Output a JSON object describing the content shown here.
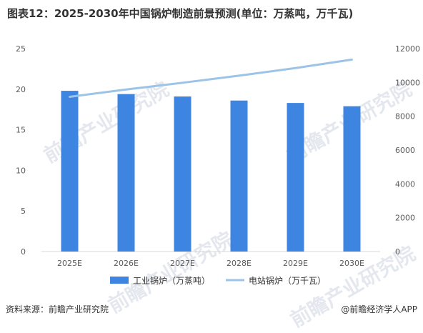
{
  "title": "图表12：2025-2030年中国锅炉制造前景预测(单位：万蒸吨，万千瓦)",
  "source": "资料来源：前瞻产业研究院",
  "brand": "@前瞻经济学人APP",
  "watermark": "前瞻产业研究院",
  "chart_data": {
    "type": "bar",
    "categories": [
      "2025E",
      "2026E",
      "2027E",
      "2028E",
      "2029E",
      "2030E"
    ],
    "series": [
      {
        "name": "工业锅炉（万蒸吨）",
        "type": "bar",
        "axis": "left",
        "values": [
          19.8,
          19.4,
          19.1,
          18.6,
          18.3,
          17.9
        ],
        "color": "#3d85e0"
      },
      {
        "name": "电站锅炉（万千瓦）",
        "type": "line",
        "axis": "right",
        "values": [
          9150,
          9580,
          9980,
          10400,
          10850,
          11350
        ],
        "color": "#9dc3e6"
      }
    ],
    "ylim_left": [
      0,
      25
    ],
    "yticks_left": [
      "0",
      "5",
      "10",
      "15",
      "20",
      "25"
    ],
    "ylim_right": [
      0,
      12000
    ],
    "yticks_right": [
      "0",
      "2000",
      "4000",
      "6000",
      "8000",
      "10000",
      "12000"
    ],
    "legend_position": "bottom"
  }
}
